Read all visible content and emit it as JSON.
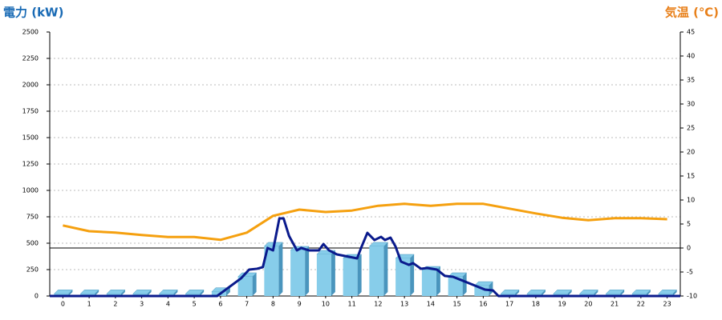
{
  "chart_data": {
    "type": "bar",
    "title": "電力 (kW)",
    "y2_title": "気温 (℃)",
    "categories": [
      "0",
      "1",
      "2",
      "3",
      "4",
      "5",
      "6",
      "7",
      "8",
      "9",
      "10",
      "11",
      "12",
      "13",
      "14",
      "15",
      "16",
      "17",
      "18",
      "19",
      "20",
      "21",
      "22",
      "23"
    ],
    "xlim": [
      -0.5,
      23.5
    ],
    "ylim": [
      0,
      2500
    ],
    "yticks": [
      0,
      250,
      500,
      750,
      1000,
      1250,
      1500,
      1750,
      2000,
      2250,
      2500
    ],
    "y2lim": [
      -10,
      45
    ],
    "y2ticks": [
      -10,
      -5,
      0,
      5,
      10,
      15,
      20,
      25,
      30,
      35,
      40,
      45
    ],
    "grid": true,
    "series": [
      {
        "type": "bar",
        "color": "#87cdea",
        "side_color": "#4a95bd",
        "values": [
          20,
          20,
          20,
          20,
          20,
          20,
          40,
          182,
          470,
          432,
          394,
          356,
          470,
          356,
          242,
          182,
          98,
          20,
          20,
          20,
          20,
          20,
          20,
          20
        ]
      },
      {
        "type": "line",
        "color": "#0a1a8c",
        "x": [
          -0.5,
          5.87,
          6.78,
          7.09,
          7.39,
          7.61,
          7.79,
          8.0,
          8.24,
          8.4,
          8.61,
          8.91,
          9.07,
          9.37,
          9.74,
          9.92,
          10.13,
          10.43,
          10.74,
          11.2,
          11.35,
          11.59,
          11.86,
          12.11,
          12.26,
          12.47,
          12.66,
          12.87,
          13.17,
          13.33,
          13.63,
          13.87,
          14.24,
          14.54,
          14.85,
          15.15,
          15.61,
          16.06,
          16.37,
          16.58,
          23.5
        ],
        "values": [
          0,
          0,
          167,
          250,
          258,
          273,
          455,
          432,
          735,
          735,
          568,
          432,
          455,
          432,
          432,
          492,
          432,
          394,
          379,
          356,
          455,
          598,
          530,
          560,
          530,
          553,
          470,
          326,
          295,
          311,
          258,
          265,
          250,
          190,
          182,
          152,
          106,
          61,
          53,
          0,
          0
        ]
      },
      {
        "type": "line",
        "axis": "y2",
        "color": "#f5a00f",
        "values": [
          4.7,
          3.5,
          3.2,
          2.7,
          2.3,
          2.3,
          1.7,
          3.2,
          6.7,
          8.0,
          7.5,
          7.8,
          8.8,
          9.2,
          8.8,
          9.2,
          9.2,
          8.2,
          7.2,
          6.3,
          5.8,
          6.2,
          6.2,
          6.0
        ]
      }
    ]
  }
}
